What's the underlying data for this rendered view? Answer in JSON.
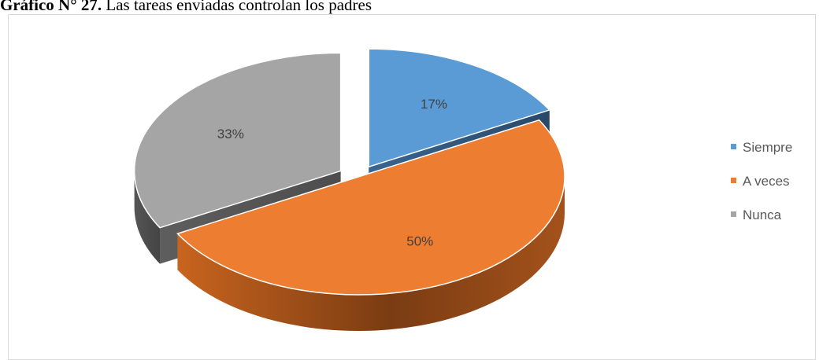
{
  "caption": {
    "prefix": "Gráfico N° 27.",
    "title": "Las tareas enviadas controlan los padres"
  },
  "chart_data": {
    "type": "pie",
    "title": "Las tareas enviadas controlan los padres",
    "style": "3d-exploded",
    "categories": [
      "Siempre",
      "A veces",
      "Nunca"
    ],
    "values": [
      17,
      50,
      33
    ],
    "data_labels": [
      "17%",
      "50%",
      "33%"
    ],
    "colors": [
      "#5b9bd5",
      "#ed7d31",
      "#a5a5a5"
    ],
    "legend": {
      "position": "right",
      "entries": [
        "Siempre",
        "A veces",
        "Nunca"
      ]
    }
  }
}
